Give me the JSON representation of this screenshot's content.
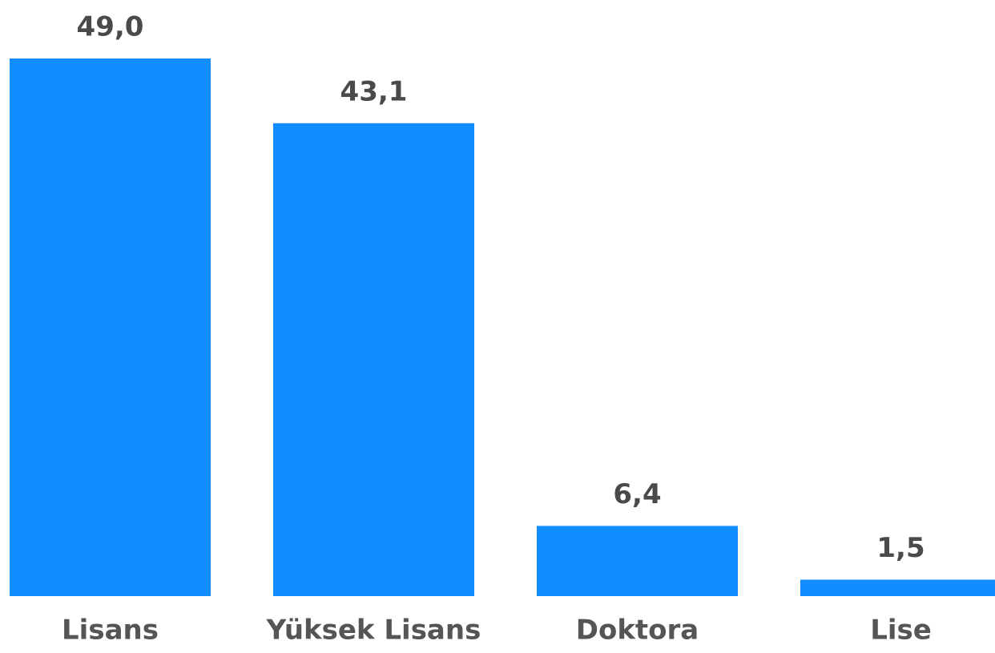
{
  "chart_data": {
    "type": "bar",
    "categories": [
      "Lisans",
      "Yüksek Lisans",
      "Doktora",
      "Lise"
    ],
    "values": [
      49.0,
      43.1,
      6.4,
      1.5
    ],
    "value_labels": [
      "49,0",
      "43,1",
      "6,4",
      "1,5"
    ],
    "color": "#118dff"
  }
}
